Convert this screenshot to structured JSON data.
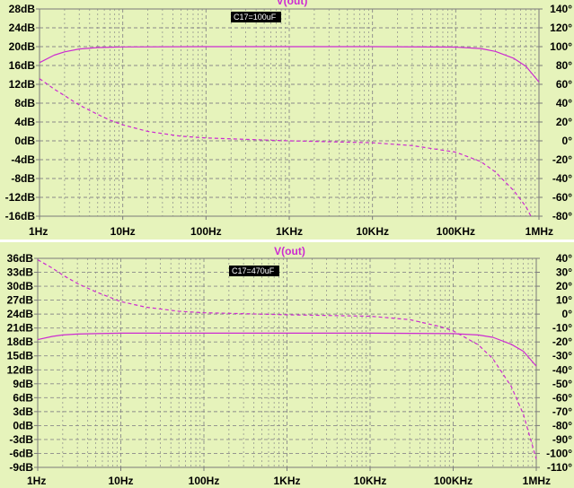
{
  "colors": {
    "background": "#e6f3bb",
    "trace": "#cc2bd1",
    "grid": "#8a8a8a",
    "frame": "#7a7a7a"
  },
  "chart_data": [
    {
      "type": "line",
      "title": "V(out)",
      "annotation": "C17=100uF",
      "x_scale": "log",
      "xlim": [
        1,
        1000000
      ],
      "x_ticks": [
        {
          "v": 1,
          "label": "1Hz"
        },
        {
          "v": 10,
          "label": "10Hz"
        },
        {
          "v": 100,
          "label": "100Hz"
        },
        {
          "v": 1000,
          "label": "1KHz"
        },
        {
          "v": 10000,
          "label": "10KHz"
        },
        {
          "v": 100000,
          "label": "100KHz"
        },
        {
          "v": 1000000,
          "label": "1MHz"
        }
      ],
      "ylim_left": [
        -16,
        28
      ],
      "left_ticks": [
        {
          "v": 28,
          "label": "28dB"
        },
        {
          "v": 24,
          "label": "24dB"
        },
        {
          "v": 20,
          "label": "20dB"
        },
        {
          "v": 16,
          "label": "16dB"
        },
        {
          "v": 12,
          "label": "12dB"
        },
        {
          "v": 8,
          "label": "8dB"
        },
        {
          "v": 4,
          "label": "4dB"
        },
        {
          "v": 0,
          "label": "0dB"
        },
        {
          "v": -4,
          "label": "-4dB"
        },
        {
          "v": -8,
          "label": "-8dB"
        },
        {
          "v": -12,
          "label": "-12dB"
        },
        {
          "v": -16,
          "label": "-16dB"
        }
      ],
      "ylim_right": [
        -80,
        140
      ],
      "right_ticks": [
        {
          "v": 140,
          "label": "140°"
        },
        {
          "v": 120,
          "label": "120°"
        },
        {
          "v": 100,
          "label": "100°"
        },
        {
          "v": 80,
          "label": "80°"
        },
        {
          "v": 60,
          "label": "60°"
        },
        {
          "v": 40,
          "label": "40°"
        },
        {
          "v": 20,
          "label": "20°"
        },
        {
          "v": 0,
          "label": "0°"
        },
        {
          "v": -20,
          "label": "-20°"
        },
        {
          "v": -40,
          "label": "-40°"
        },
        {
          "v": -60,
          "label": "-60°"
        },
        {
          "v": -80,
          "label": "-80°"
        }
      ],
      "series": [
        {
          "axis": "left",
          "style": "solid",
          "x": [
            1,
            1.5,
            2,
            3,
            5,
            10,
            100,
            1000,
            10000,
            100000,
            200000,
            300000,
            500000,
            700000,
            1000000
          ],
          "y": [
            16.6,
            18.2,
            18.9,
            19.5,
            19.8,
            19.95,
            20,
            20,
            20,
            19.9,
            19.6,
            19,
            17.5,
            15.8,
            12.5
          ]
        },
        {
          "axis": "right",
          "style": "dashed",
          "x": [
            1,
            1.5,
            2,
            3,
            5,
            7,
            10,
            20,
            50,
            100,
            1000,
            10000,
            30000,
            100000,
            200000,
            300000,
            500000,
            700000,
            800000
          ],
          "y": [
            66,
            55,
            48,
            38,
            28,
            22,
            17,
            10,
            5,
            3,
            0,
            -2,
            -5,
            -12,
            -22,
            -33,
            -53,
            -70,
            -80
          ]
        }
      ]
    },
    {
      "type": "line",
      "title": "V(out)",
      "annotation": "C17=470uF",
      "x_scale": "log",
      "xlim": [
        1,
        1000000
      ],
      "x_ticks": [
        {
          "v": 1,
          "label": "1Hz"
        },
        {
          "v": 10,
          "label": "10Hz"
        },
        {
          "v": 100,
          "label": "100Hz"
        },
        {
          "v": 1000,
          "label": "1KHz"
        },
        {
          "v": 10000,
          "label": "10KHz"
        },
        {
          "v": 100000,
          "label": "100KHz"
        },
        {
          "v": 1000000,
          "label": "1MHz"
        }
      ],
      "ylim_left": [
        -9,
        36
      ],
      "left_ticks": [
        {
          "v": 36,
          "label": "36dB"
        },
        {
          "v": 33,
          "label": "33dB"
        },
        {
          "v": 30,
          "label": "30dB"
        },
        {
          "v": 27,
          "label": "27dB"
        },
        {
          "v": 24,
          "label": "24dB"
        },
        {
          "v": 21,
          "label": "21dB"
        },
        {
          "v": 18,
          "label": "18dB"
        },
        {
          "v": 15,
          "label": "15dB"
        },
        {
          "v": 12,
          "label": "12dB"
        },
        {
          "v": 9,
          "label": "9dB"
        },
        {
          "v": 6,
          "label": "6dB"
        },
        {
          "v": 3,
          "label": "3dB"
        },
        {
          "v": 0,
          "label": "0dB"
        },
        {
          "v": -3,
          "label": "-3dB"
        },
        {
          "v": -6,
          "label": "-6dB"
        },
        {
          "v": -9,
          "label": "-9dB"
        }
      ],
      "ylim_right": [
        -110,
        40
      ],
      "right_ticks": [
        {
          "v": 40,
          "label": "40°"
        },
        {
          "v": 30,
          "label": "30°"
        },
        {
          "v": 20,
          "label": "20°"
        },
        {
          "v": 10,
          "label": "10°"
        },
        {
          "v": 0,
          "label": "0°"
        },
        {
          "v": -10,
          "label": "-10°"
        },
        {
          "v": -20,
          "label": "-20°"
        },
        {
          "v": -30,
          "label": "-30°"
        },
        {
          "v": -40,
          "label": "-40°"
        },
        {
          "v": -50,
          "label": "-50°"
        },
        {
          "v": -60,
          "label": "-60°"
        },
        {
          "v": -70,
          "label": "-70°"
        },
        {
          "v": -80,
          "label": "-80°"
        },
        {
          "v": -90,
          "label": "-90°"
        },
        {
          "v": -100,
          "label": "-100°"
        },
        {
          "v": -110,
          "label": "-110°"
        }
      ],
      "series": [
        {
          "axis": "left",
          "style": "solid",
          "x": [
            1,
            1.5,
            2,
            3,
            5,
            10,
            100,
            1000,
            10000,
            100000,
            200000,
            300000,
            500000,
            700000,
            1000000
          ],
          "y": [
            18.5,
            19.2,
            19.5,
            19.7,
            19.8,
            19.9,
            19.9,
            19.9,
            19.9,
            19.8,
            19.5,
            19,
            17.5,
            16,
            12.8
          ]
        },
        {
          "axis": "right",
          "style": "dashed",
          "x": [
            1,
            1.5,
            2,
            3,
            5,
            10,
            20,
            50,
            100,
            1000,
            10000,
            30000,
            70000,
            100000,
            200000,
            300000,
            500000,
            700000,
            1000000
          ],
          "y": [
            39,
            33,
            28,
            22,
            16,
            9,
            5,
            2,
            1,
            -0.5,
            -1.5,
            -4,
            -9,
            -12,
            -22,
            -32,
            -52,
            -72,
            -104
          ]
        }
      ]
    }
  ]
}
